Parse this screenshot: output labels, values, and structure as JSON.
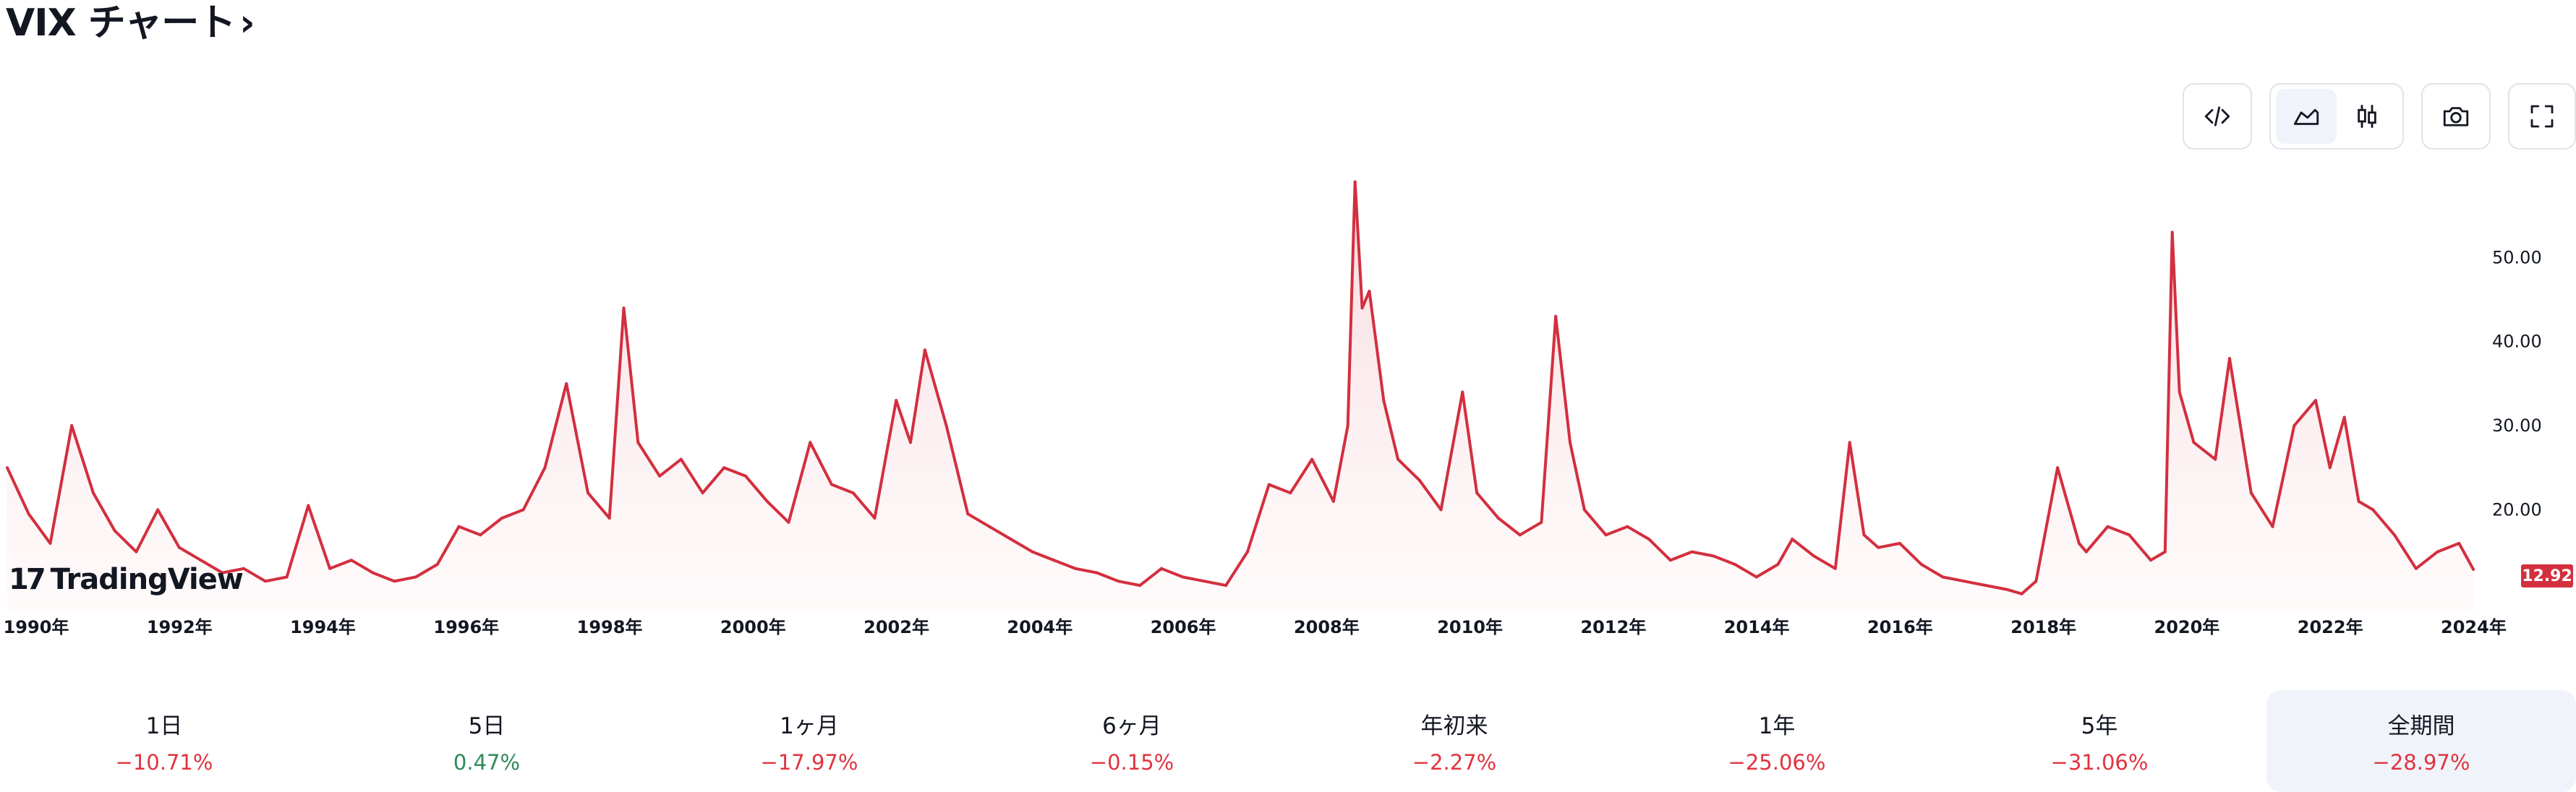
{
  "header": {
    "title": "VIX チャート",
    "chevron": "›"
  },
  "toolbar": {
    "embed_icon": "code-icon",
    "area_icon": "area-chart-icon",
    "candles_icon": "candlestick-icon",
    "snapshot_icon": "camera-icon",
    "fullscreen_icon": "fullscreen-icon"
  },
  "logo": {
    "text": "TradingView",
    "mark": "17"
  },
  "price_tag": "12.92",
  "periods": [
    {
      "label": "1日",
      "value": "−10.71%",
      "tone": "neg"
    },
    {
      "label": "5日",
      "value": "0.47%",
      "tone": "pos"
    },
    {
      "label": "1ヶ月",
      "value": "−17.97%",
      "tone": "neg"
    },
    {
      "label": "6ヶ月",
      "value": "−0.15%",
      "tone": "neg"
    },
    {
      "label": "年初来",
      "value": "−2.27%",
      "tone": "neg"
    },
    {
      "label": "1年",
      "value": "−25.06%",
      "tone": "neg"
    },
    {
      "label": "5年",
      "value": "−31.06%",
      "tone": "neg"
    },
    {
      "label": "全期間",
      "value": "−28.97%",
      "tone": "neg",
      "active": true
    }
  ],
  "colors": {
    "line": "#d32f3f",
    "fill_top": "#f6d6da",
    "fill_bottom": "#fdf3f4",
    "active_bg": "#f0f3fa"
  },
  "chart_data": {
    "type": "area",
    "x_ticks": [
      "1990年",
      "1992年",
      "1994年",
      "1996年",
      "1998年",
      "2000年",
      "2002年",
      "2004年",
      "2006年",
      "2008年",
      "2010年",
      "2012年",
      "2014年",
      "2016年",
      "2018年",
      "2020年",
      "2022年",
      "2024年"
    ],
    "y_ticks": [
      "20.00",
      "30.00",
      "40.00",
      "50.00"
    ],
    "ylim": [
      8,
      60
    ],
    "xlim": [
      1990.0,
      2024.5
    ],
    "x": [
      1990.0,
      1990.3,
      1990.6,
      1990.9,
      1991.2,
      1991.5,
      1991.8,
      1992.1,
      1992.4,
      1992.7,
      1993.0,
      1993.3,
      1993.6,
      1993.9,
      1994.2,
      1994.5,
      1994.8,
      1995.1,
      1995.4,
      1995.7,
      1996.0,
      1996.3,
      1996.6,
      1996.9,
      1997.2,
      1997.5,
      1997.8,
      1998.1,
      1998.4,
      1998.6,
      1998.8,
      1999.1,
      1999.4,
      1999.7,
      2000.0,
      2000.3,
      2000.6,
      2000.9,
      2001.2,
      2001.5,
      2001.8,
      2002.1,
      2002.4,
      2002.6,
      2002.8,
      2003.1,
      2003.4,
      2003.7,
      2004.0,
      2004.3,
      2004.6,
      2004.9,
      2005.2,
      2005.5,
      2005.8,
      2006.1,
      2006.4,
      2006.7,
      2007.0,
      2007.3,
      2007.6,
      2007.9,
      2008.2,
      2008.5,
      2008.7,
      2008.8,
      2008.9,
      2009.0,
      2009.2,
      2009.4,
      2009.7,
      2010.0,
      2010.3,
      2010.5,
      2010.8,
      2011.1,
      2011.4,
      2011.6,
      2011.8,
      2012.0,
      2012.3,
      2012.6,
      2012.9,
      2013.2,
      2013.5,
      2013.8,
      2014.1,
      2014.4,
      2014.7,
      2014.9,
      2015.2,
      2015.5,
      2015.7,
      2015.9,
      2016.1,
      2016.4,
      2016.7,
      2017.0,
      2017.3,
      2017.6,
      2017.9,
      2018.1,
      2018.3,
      2018.6,
      2018.9,
      2019.0,
      2019.3,
      2019.6,
      2019.9,
      2020.1,
      2020.2,
      2020.3,
      2020.5,
      2020.8,
      2021.0,
      2021.3,
      2021.6,
      2021.9,
      2022.2,
      2022.4,
      2022.6,
      2022.8,
      2023.0,
      2023.3,
      2023.6,
      2023.9,
      2024.2,
      2024.4
    ],
    "values": [
      25.0,
      19.5,
      16.0,
      30.0,
      22.0,
      17.5,
      15.0,
      20.0,
      15.5,
      14.0,
      12.5,
      13.0,
      11.5,
      12.0,
      20.5,
      13.0,
      14.0,
      12.5,
      11.5,
      12.0,
      13.5,
      18.0,
      17.0,
      19.0,
      20.0,
      25.0,
      35.0,
      22.0,
      19.0,
      44.0,
      28.0,
      24.0,
      26.0,
      22.0,
      25.0,
      24.0,
      21.0,
      18.5,
      28.0,
      23.0,
      22.0,
      19.0,
      33.0,
      28.0,
      39.0,
      30.0,
      19.5,
      18.0,
      16.5,
      15.0,
      14.0,
      13.0,
      12.5,
      11.5,
      11.0,
      13.0,
      12.0,
      11.5,
      11.0,
      15.0,
      23.0,
      22.0,
      26.0,
      21.0,
      30.0,
      59.0,
      44.0,
      46.0,
      33.0,
      26.0,
      23.5,
      20.0,
      34.0,
      22.0,
      19.0,
      17.0,
      18.5,
      43.0,
      28.0,
      20.0,
      17.0,
      18.0,
      16.5,
      14.0,
      15.0,
      14.5,
      13.5,
      12.0,
      13.5,
      16.5,
      14.5,
      13.0,
      28.0,
      17.0,
      15.5,
      16.0,
      13.5,
      12.0,
      11.5,
      11.0,
      10.5,
      10.0,
      11.5,
      25.0,
      16.0,
      15.0,
      18.0,
      17.0,
      14.0,
      15.0,
      53.0,
      34.0,
      28.0,
      26.0,
      38.0,
      22.0,
      18.0,
      30.0,
      33.0,
      25.0,
      31.0,
      21.0,
      20.0,
      17.0,
      13.0,
      15.0,
      16.0,
      12.9
    ]
  }
}
